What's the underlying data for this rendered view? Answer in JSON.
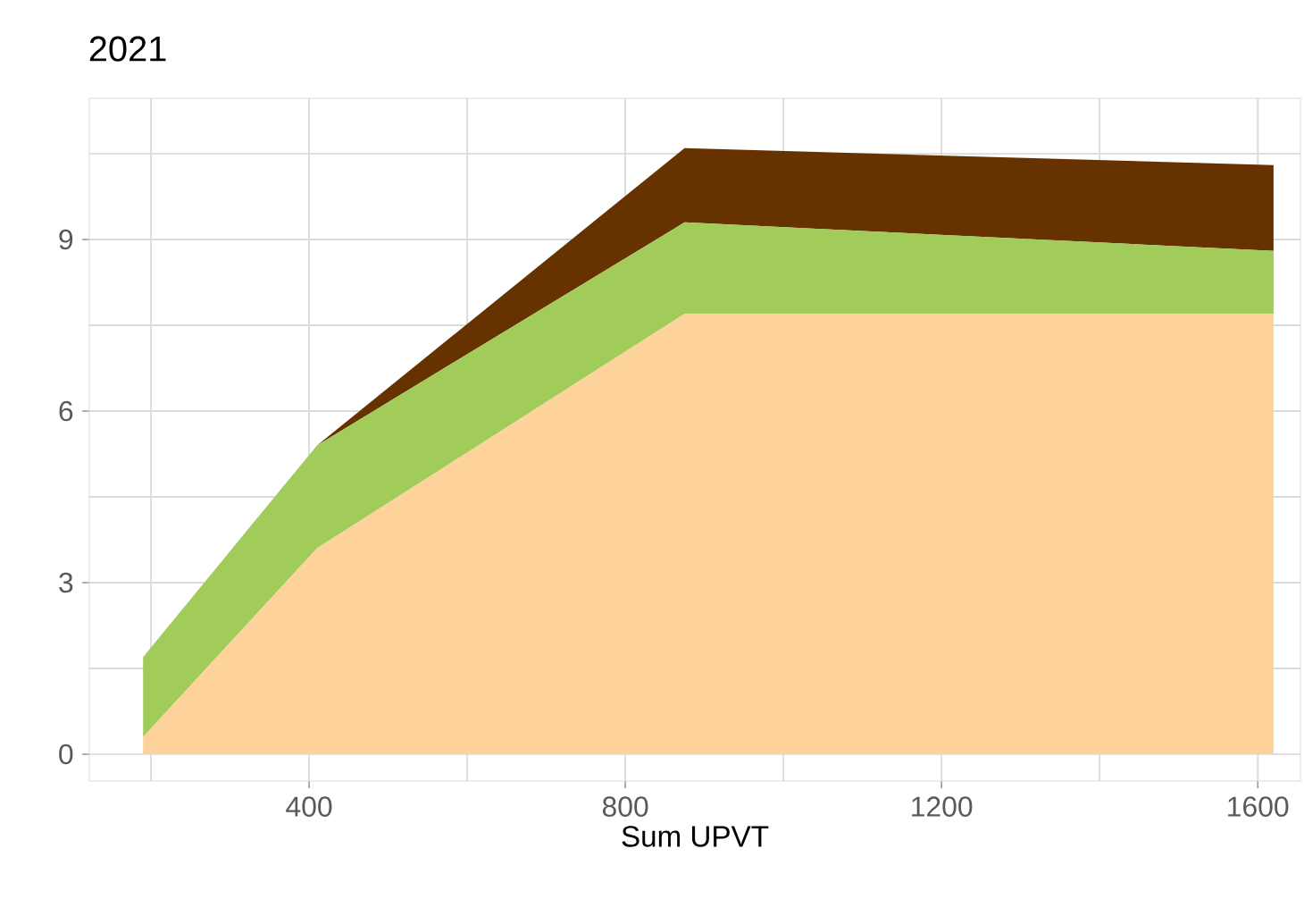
{
  "chart_data": {
    "type": "area",
    "title": "2021",
    "xlabel": "Sum UPVT",
    "stacked": true,
    "x": [
      190,
      410,
      875,
      1620
    ],
    "series": [
      {
        "color": "#fdd39b",
        "values": [
          0.3,
          3.6,
          7.7,
          7.7
        ]
      },
      {
        "color": "#a1cc5a",
        "values": [
          1.4,
          1.8,
          1.6,
          1.1
        ]
      },
      {
        "color": "#663300",
        "values": [
          0,
          0,
          1.3,
          1.5
        ]
      }
    ],
    "xlim": [
      122,
      1654
    ],
    "ylim": [
      -0.47,
      11.47
    ],
    "xticks": [
      {
        "value": 200,
        "label": null
      },
      400,
      {
        "value": 600,
        "label": null
      },
      800,
      {
        "value": 1000,
        "label": null
      },
      1200,
      {
        "value": 1400,
        "label": null
      },
      1600
    ],
    "yticks": [
      0,
      {
        "value": 1.5,
        "label": null
      },
      3,
      {
        "value": 4.5,
        "label": null
      },
      6,
      {
        "value": 7.5,
        "label": null
      },
      9,
      {
        "value": 10.5,
        "label": null
      }
    ],
    "grid": true
  }
}
